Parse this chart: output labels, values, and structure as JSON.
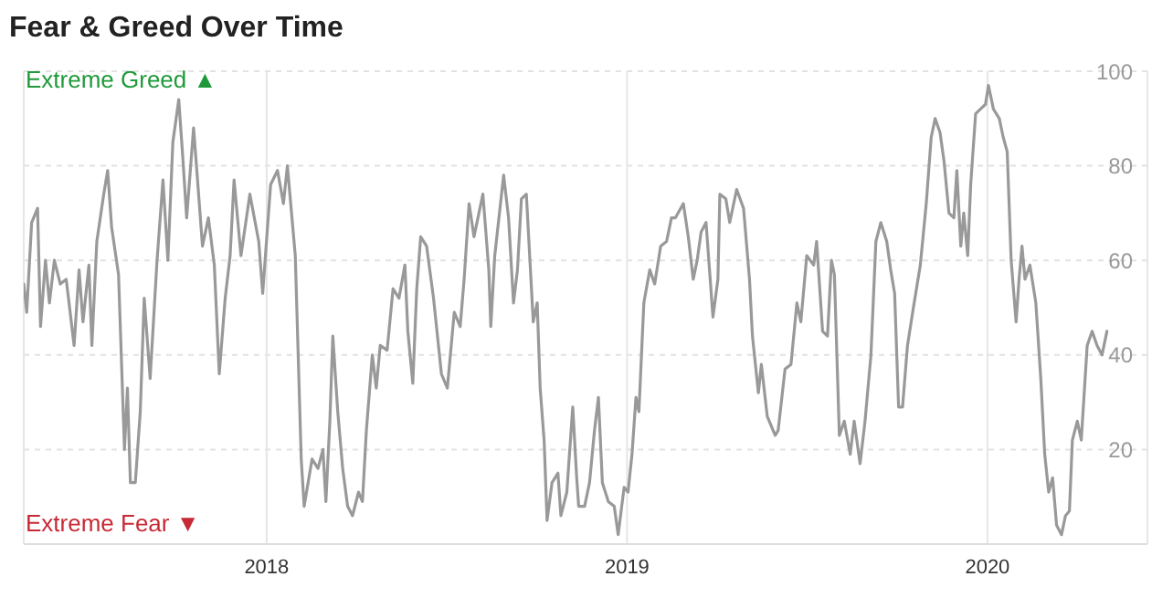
{
  "chart_data": {
    "type": "line",
    "title": "Fear & Greed Over Time",
    "annotations": [
      "Extreme Greed ▲",
      "Extreme Fear ▼"
    ],
    "color": "#999999",
    "grid": true,
    "x": [
      "2017-04-30",
      "2017-05-03",
      "2017-05-08",
      "2017-05-14",
      "2017-05-17",
      "2017-05-22",
      "2017-05-26",
      "2017-05-31",
      "2017-06-06",
      "2017-06-12",
      "2017-06-20",
      "2017-06-25",
      "2017-06-29",
      "2017-07-05",
      "2017-07-08",
      "2017-07-13",
      "2017-07-20",
      "2017-07-24",
      "2017-07-28",
      "2017-08-04",
      "2017-08-10",
      "2017-08-13",
      "2017-08-16",
      "2017-08-21",
      "2017-08-26",
      "2017-08-30",
      "2017-09-05",
      "2017-09-12",
      "2017-09-18",
      "2017-09-23",
      "2017-09-28",
      "2017-10-04",
      "2017-10-08",
      "2017-10-12",
      "2017-10-19",
      "2017-10-23",
      "2017-10-28",
      "2017-11-03",
      "2017-11-09",
      "2017-11-14",
      "2017-11-20",
      "2017-11-25",
      "2017-11-29",
      "2017-12-06",
      "2017-12-15",
      "2017-12-24",
      "2017-12-28",
      "2018-01-05",
      "2018-01-12",
      "2018-01-18",
      "2018-01-22",
      "2018-01-30",
      "2018-02-05",
      "2018-02-08",
      "2018-02-16",
      "2018-02-22",
      "2018-02-27",
      "2018-03-02",
      "2018-03-06",
      "2018-03-09",
      "2018-03-14",
      "2018-03-19",
      "2018-03-24",
      "2018-03-29",
      "2018-04-04",
      "2018-04-08",
      "2018-04-12",
      "2018-04-18",
      "2018-04-22",
      "2018-04-26",
      "2018-05-03",
      "2018-05-09",
      "2018-05-15",
      "2018-05-21",
      "2018-05-24",
      "2018-05-29",
      "2018-06-02",
      "2018-06-06",
      "2018-06-12",
      "2018-06-19",
      "2018-06-27",
      "2018-07-03",
      "2018-07-10",
      "2018-07-16",
      "2018-07-20",
      "2018-07-25",
      "2018-07-30",
      "2018-08-08",
      "2018-08-14",
      "2018-08-16",
      "2018-08-20",
      "2018-08-29",
      "2018-09-03",
      "2018-09-08",
      "2018-09-12",
      "2018-09-16",
      "2018-09-21",
      "2018-09-28",
      "2018-10-02",
      "2018-10-05",
      "2018-10-09",
      "2018-10-12",
      "2018-10-17",
      "2018-10-23",
      "2018-10-26",
      "2018-11-01",
      "2018-11-07",
      "2018-11-11",
      "2018-11-13",
      "2018-11-19",
      "2018-11-24",
      "2018-11-29",
      "2018-12-03",
      "2018-12-07",
      "2018-12-13",
      "2018-12-19",
      "2018-12-23",
      "2018-12-29",
      "2019-01-02",
      "2019-01-06",
      "2019-01-10",
      "2019-01-13",
      "2019-01-18",
      "2019-01-24",
      "2019-01-29",
      "2019-02-04",
      "2019-02-10",
      "2019-02-15",
      "2019-02-19",
      "2019-02-27",
      "2019-03-04",
      "2019-03-09",
      "2019-03-13",
      "2019-03-17",
      "2019-03-22",
      "2019-03-29",
      "2019-04-03",
      "2019-04-05",
      "2019-04-11",
      "2019-04-15",
      "2019-04-22",
      "2019-04-29",
      "2019-05-05",
      "2019-05-08",
      "2019-05-14",
      "2019-05-17",
      "2019-05-23",
      "2019-05-31",
      "2019-06-03",
      "2019-06-10",
      "2019-06-16",
      "2019-06-22",
      "2019-06-26",
      "2019-07-02",
      "2019-07-09",
      "2019-07-12",
      "2019-07-18",
      "2019-07-23",
      "2019-07-27",
      "2019-07-30",
      "2019-08-04",
      "2019-08-09",
      "2019-08-15",
      "2019-08-19",
      "2019-08-25",
      "2019-08-30",
      "2019-09-05",
      "2019-09-10",
      "2019-09-15",
      "2019-09-21",
      "2019-09-25",
      "2019-09-29",
      "2019-10-03",
      "2019-10-07",
      "2019-10-12",
      "2019-10-18",
      "2019-10-25",
      "2019-10-31",
      "2019-11-05",
      "2019-11-09",
      "2019-11-14",
      "2019-11-18",
      "2019-11-23",
      "2019-11-28",
      "2019-12-01",
      "2019-12-05",
      "2019-12-08",
      "2019-12-12",
      "2019-12-15",
      "2019-12-20",
      "2019-12-25",
      "2019-12-30",
      "2020-01-02",
      "2020-01-07",
      "2020-01-13",
      "2020-01-17",
      "2020-01-21",
      "2020-01-25",
      "2020-01-30",
      "2020-02-02",
      "2020-02-05",
      "2020-02-08",
      "2020-02-13",
      "2020-02-19",
      "2020-02-24",
      "2020-02-28",
      "2020-03-03",
      "2020-03-07",
      "2020-03-11",
      "2020-03-16",
      "2020-03-20",
      "2020-03-24",
      "2020-03-27",
      "2020-04-01",
      "2020-04-05",
      "2020-04-08",
      "2020-04-11",
      "2020-04-16",
      "2020-04-21",
      "2020-04-26",
      "2020-05-01"
    ],
    "values": [
      55,
      49,
      68,
      71,
      46,
      60,
      51,
      60,
      55,
      56,
      42,
      58,
      47,
      59,
      42,
      64,
      74,
      79,
      67,
      57,
      20,
      33,
      13,
      13,
      28,
      52,
      35,
      60,
      77,
      60,
      85,
      94,
      82,
      69,
      88,
      77,
      63,
      69,
      59,
      36,
      52,
      61,
      77,
      61,
      74,
      64,
      53,
      76,
      79,
      72,
      80,
      61,
      18,
      8,
      18,
      16,
      20,
      9,
      26,
      44,
      28,
      16,
      8,
      6,
      11,
      9,
      24,
      40,
      33,
      42,
      41,
      54,
      52,
      59,
      45,
      34,
      54,
      65,
      63,
      52,
      36,
      33,
      49,
      46,
      56,
      72,
      65,
      74,
      58,
      46,
      61,
      78,
      69,
      51,
      58,
      73,
      74,
      47,
      51,
      33,
      22,
      5,
      13,
      15,
      6,
      11,
      29,
      14,
      8,
      8,
      13,
      24,
      31,
      13,
      9,
      8,
      2,
      12,
      11,
      19,
      31,
      28,
      51,
      58,
      55,
      63,
      64,
      69,
      69,
      72,
      65,
      56,
      60,
      66,
      68,
      48,
      56,
      74,
      73,
      68,
      75,
      71,
      56,
      44,
      32,
      38,
      27,
      23,
      24,
      37,
      38,
      51,
      47,
      61,
      59,
      64,
      45,
      44,
      60,
      57,
      23,
      26,
      19,
      26,
      17,
      26,
      40,
      64,
      68,
      64,
      58,
      53,
      29,
      29,
      42,
      50,
      59,
      72,
      86,
      90,
      87,
      81,
      70,
      69,
      79,
      63,
      70,
      61,
      76,
      91,
      92,
      93,
      97,
      92,
      90,
      86,
      83,
      60,
      47,
      56,
      63,
      56,
      59,
      51,
      35,
      19,
      11,
      14,
      4,
      2,
      6,
      7,
      22,
      26,
      22,
      32,
      42,
      45,
      42,
      40,
      45
    ],
    "xlim": [
      "2017-04-30",
      "2020-06-11"
    ],
    "xticks": [
      "2018",
      "2019",
      "2020"
    ],
    "ylim": [
      0,
      100
    ],
    "yticks": [
      20,
      40,
      60,
      80,
      100
    ]
  }
}
